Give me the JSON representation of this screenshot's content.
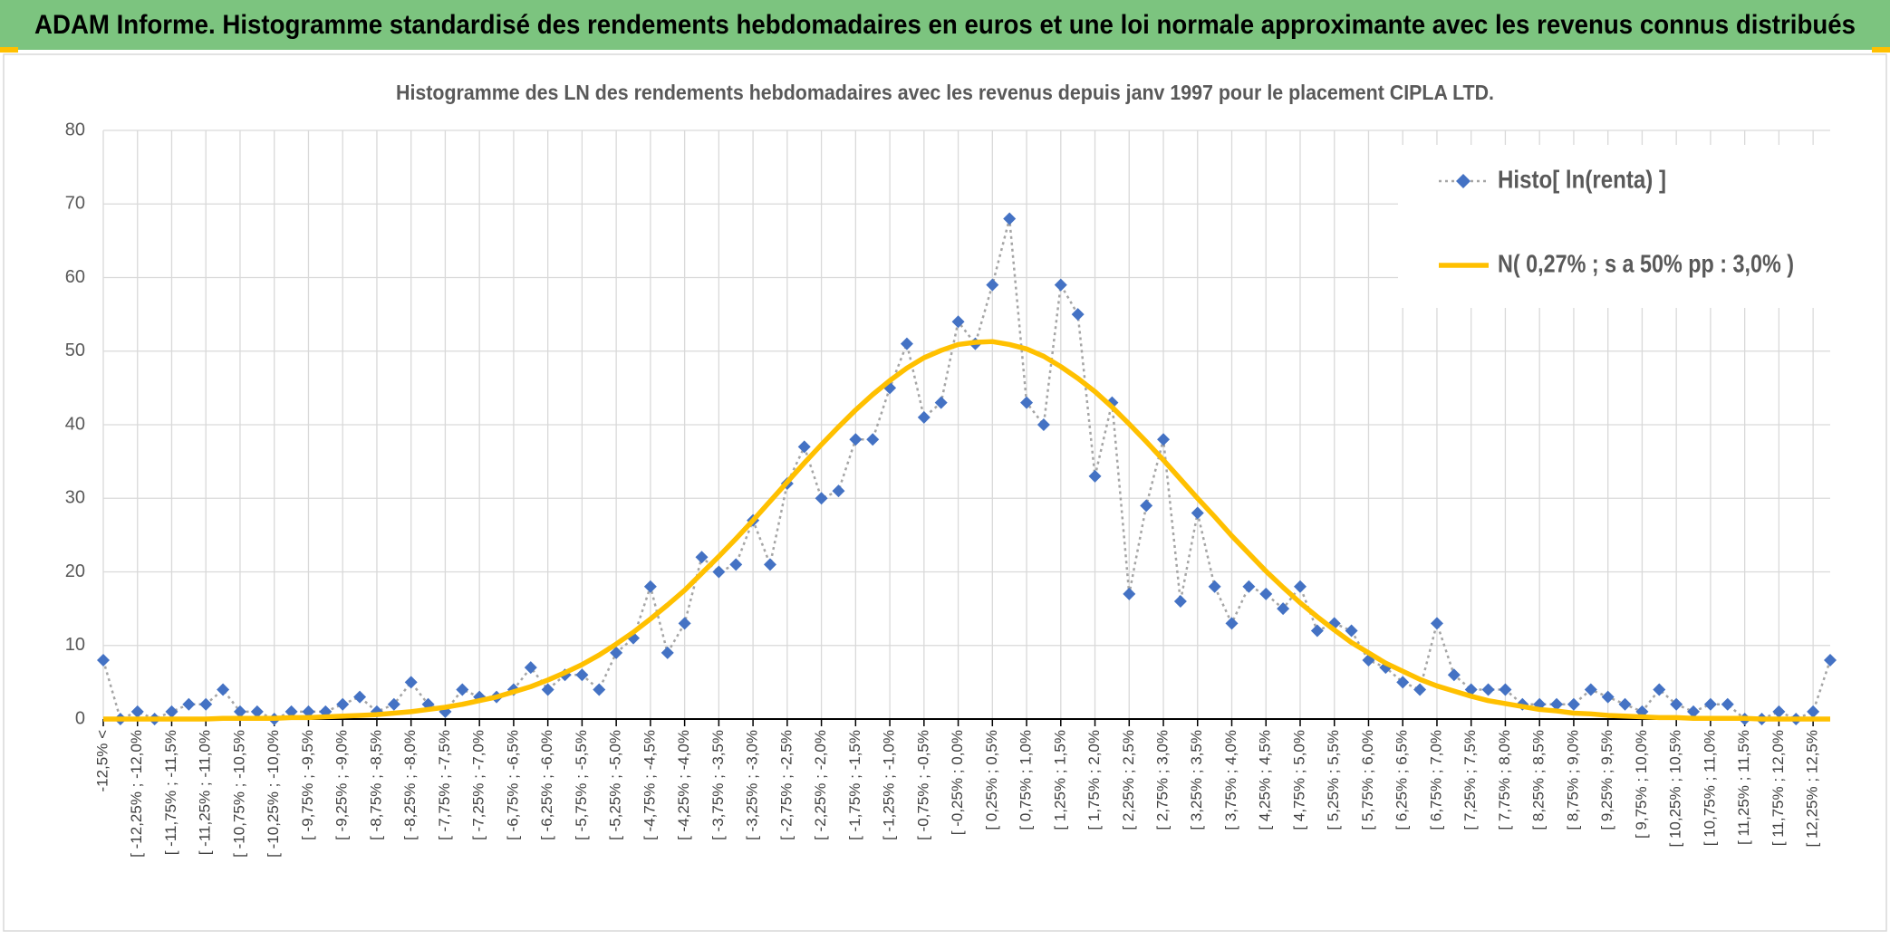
{
  "header": {
    "title": "ADAM Informe. Histogramme standardisé des rendements hebdomadaires en euros et une loi normale approximante avec les revenus connus distribués"
  },
  "chart_data": {
    "type": "line",
    "title": "Histogramme des LN des rendements hebdomadaires avec les revenus depuis janv 1997 pour le placement CIPLA LTD.",
    "categories": [
      "-12,5% <",
      null,
      "[ -12,25% ; -12,0%",
      null,
      "[ -11,75% ; -11,5%",
      null,
      "[ -11,25% ; -11,0%",
      null,
      "[ -10,75% ; -10,5%",
      null,
      "[ -10,25% ; -10,0%",
      null,
      "[ -9,75% ; -9,5%",
      null,
      "[ -9,25% ; -9,0%",
      null,
      "[ -8,75% ; -8,5%",
      null,
      "[ -8,25% ; -8,0%",
      null,
      "[ -7,75% ; -7,5%",
      null,
      "[ -7,25% ; -7,0%",
      null,
      "[ -6,75% ; -6,5%",
      null,
      "[ -6,25% ; -6,0%",
      null,
      "[ -5,75% ; -5,5%",
      null,
      "[ -5,25% ; -5,0%",
      null,
      "[ -4,75% ; -4,5%",
      null,
      "[ -4,25% ; -4,0%",
      null,
      "[ -3,75% ; -3,5%",
      null,
      "[ -3,25% ; -3,0%",
      null,
      "[ -2,75% ; -2,5%",
      null,
      "[ -2,25% ; -2,0%",
      null,
      "[ -1,75% ; -1,5%",
      null,
      "[ -1,25% ; -1,0%",
      null,
      "[ -0,75% ; -0,5%",
      null,
      "[ -0,25% ; 0,0%",
      null,
      "[ 0,25% ; 0,5%",
      null,
      "[ 0,75% ; 1,0%",
      null,
      "[ 1,25% ; 1,5%",
      null,
      "[ 1,75% ; 2,0%",
      null,
      "[ 2,25% ; 2,5%",
      null,
      "[ 2,75% ; 3,0%",
      null,
      "[ 3,25% ; 3,5%",
      null,
      "[ 3,75% ; 4,0%",
      null,
      "[ 4,25% ; 4,5%",
      null,
      "[ 4,75% ; 5,0%",
      null,
      "[ 5,25% ; 5,5%",
      null,
      "[ 5,75% ; 6,0%",
      null,
      "[ 6,25% ; 6,5%",
      null,
      "[ 6,75% ; 7,0%",
      null,
      "[ 7,25% ; 7,5%",
      null,
      "[ 7,75% ; 8,0%",
      null,
      "[ 8,25% ; 8,5%",
      null,
      "[ 8,75% ; 9,0%",
      null,
      "[ 9,25% ; 9,5%",
      null,
      "[ 9,75% ; 10,0%",
      null,
      "[ 10,25% ; 10,5%",
      null,
      "[ 10,75% ; 11,0%",
      null,
      "[ 11,25% ; 11,5%",
      null,
      "[ 11,75% ; 12,0%",
      null,
      "[ 12,25% ; 12,5%",
      null
    ],
    "series": [
      {
        "name": "Histo[ ln(renta) ]",
        "color": "#4472c4",
        "line_color": "#a5a5a5",
        "marker": "diamond",
        "values": [
          8,
          0,
          1,
          0,
          1,
          2,
          2,
          4,
          1,
          1,
          0,
          1,
          1,
          1,
          2,
          3,
          1,
          2,
          5,
          2,
          1,
          4,
          3,
          3,
          4,
          7,
          4,
          6,
          6,
          4,
          9,
          11,
          18,
          9,
          13,
          22,
          20,
          21,
          27,
          21,
          32,
          37,
          30,
          31,
          38,
          38,
          45,
          51,
          41,
          43,
          54,
          51,
          59,
          68,
          43,
          40,
          59,
          55,
          33,
          43,
          17,
          29,
          38,
          16,
          28,
          18,
          13,
          18,
          17,
          15,
          18,
          12,
          13,
          12,
          8,
          7,
          5,
          4,
          13,
          6,
          4,
          4,
          4,
          2,
          2,
          2,
          2,
          4,
          3,
          2,
          1,
          4,
          2,
          1,
          2,
          2,
          0,
          0,
          1,
          0,
          1,
          8
        ]
      },
      {
        "name": "N( 0,27% ; s a 50% pp : 3,0% )",
        "color": "#ffc000",
        "values": [
          0,
          0,
          0,
          0,
          0,
          0,
          0,
          0.1,
          0.1,
          0.1,
          0.1,
          0.2,
          0.2,
          0.3,
          0.4,
          0.5,
          0.6,
          0.8,
          1.0,
          1.3,
          1.6,
          2.0,
          2.5,
          3.0,
          3.7,
          4.4,
          5.3,
          6.3,
          7.4,
          8.7,
          10.2,
          11.8,
          13.6,
          15.5,
          17.5,
          19.8,
          22.1,
          24.5,
          27.0,
          29.6,
          32.2,
          34.8,
          37.3,
          39.7,
          42.0,
          44.1,
          46.0,
          47.7,
          49.1,
          50.1,
          50.9,
          51.2,
          51.3,
          50.9,
          50.3,
          49.3,
          47.9,
          46.3,
          44.5,
          42.4,
          40.1,
          37.7,
          35.2,
          32.6,
          30.0,
          27.5,
          24.9,
          22.5,
          20.1,
          17.9,
          15.8,
          13.9,
          12.1,
          10.4,
          9.0,
          7.6,
          6.5,
          5.4,
          4.5,
          3.8,
          3.1,
          2.5,
          2.1,
          1.7,
          1.3,
          1.1,
          0.8,
          0.7,
          0.5,
          0.4,
          0.3,
          0.2,
          0.2,
          0.1,
          0.1,
          0.1,
          0.1,
          0,
          0,
          0,
          0,
          0
        ]
      }
    ],
    "ylim": [
      0,
      80
    ],
    "yticks": [
      0,
      10,
      20,
      30,
      40,
      50,
      60,
      70,
      80
    ],
    "grid": true,
    "legend": "top-right"
  }
}
